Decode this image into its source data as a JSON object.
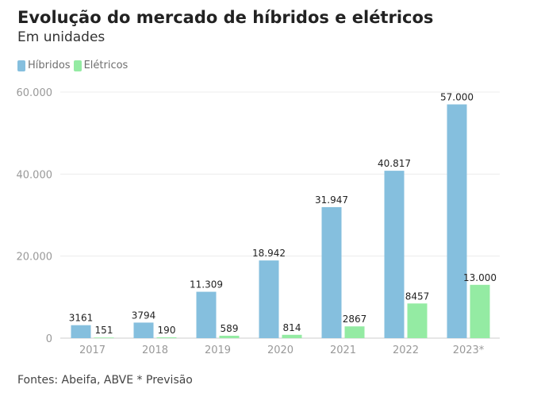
{
  "header": {
    "title": "Evolução do mercado de híbridos e elétricos",
    "subtitle": "Em unidades"
  },
  "legend": [
    {
      "label": "Híbridos",
      "color": "#85bfde"
    },
    {
      "label": "Elétricos",
      "color": "#94eba3"
    }
  ],
  "chart_data": {
    "type": "bar",
    "title": "Evolução do mercado de híbridos e elétricos",
    "subtitle": "Em unidades",
    "categories": [
      "2017",
      "2018",
      "2019",
      "2020",
      "2021",
      "2022",
      "2023*"
    ],
    "series": [
      {
        "name": "Híbridos",
        "color": "#85bfde",
        "values": [
          3161,
          3794,
          11309,
          18942,
          31947,
          40817,
          57000
        ],
        "labels": [
          "3161",
          "3794",
          "11.309",
          "18.942",
          "31.947",
          "40.817",
          "57.000"
        ]
      },
      {
        "name": "Elétricos",
        "color": "#94eba3",
        "values": [
          151,
          190,
          589,
          814,
          2867,
          8457,
          13000
        ],
        "labels": [
          "151",
          "190",
          "589",
          "814",
          "2867",
          "8457",
          "13.000"
        ]
      }
    ],
    "ylim": [
      0,
      60000
    ],
    "yticks": [
      0,
      20000,
      40000,
      60000
    ],
    "ytick_labels": [
      "0",
      "20.000",
      "40.000",
      "60.000"
    ],
    "grid": true,
    "legend_position": "top-left"
  },
  "footer": {
    "source": "Fontes: Abeifa, ABVE * Previsão"
  }
}
